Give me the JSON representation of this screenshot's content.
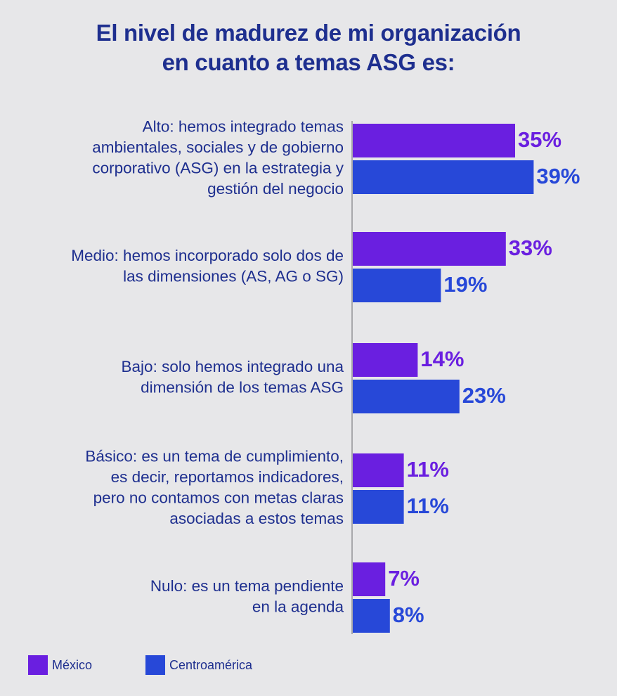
{
  "chart_data": {
    "type": "bar",
    "orientation": "horizontal",
    "title_lines": [
      "El nivel de madurez de mi organización",
      "en cuanto a temas ASG es:"
    ],
    "categories": [
      [
        "Alto: hemos integrado temas",
        "ambientales, sociales y de gobierno",
        "corporativo (ASG) en la estrategia y",
        "gestión del negocio"
      ],
      [
        "Medio: hemos incorporado solo dos de",
        "las dimensiones (AS, AG o SG)"
      ],
      [
        "Bajo: solo hemos integrado una",
        "dimensión de los temas ASG"
      ],
      [
        "Básico: es un tema de cumplimiento,",
        "es decir, reportamos indicadores,",
        "pero no contamos con metas claras",
        "asociadas a estos temas"
      ],
      [
        "Nulo: es un tema pendiente",
        "en la agenda"
      ]
    ],
    "series": [
      {
        "name": "México",
        "color": "#6a1fe0",
        "values": [
          35,
          33,
          14,
          11,
          7
        ],
        "labels": [
          "35%",
          "33%",
          "14%",
          "11%",
          "7%"
        ]
      },
      {
        "name": "Centroamérica",
        "color": "#2748d8",
        "values": [
          39,
          19,
          23,
          11,
          8
        ],
        "labels": [
          "39%",
          "19%",
          "23%",
          "11%",
          "8%"
        ]
      }
    ],
    "xlim": [
      0,
      100
    ],
    "grid": false,
    "legend_position": "bottom-left",
    "axis_color": "#a8a8ac"
  }
}
